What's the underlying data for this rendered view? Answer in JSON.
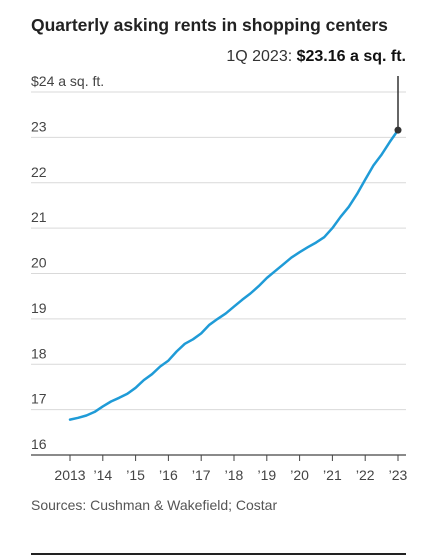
{
  "title": "Quarterly asking rents in shopping centers",
  "annotation": {
    "label": "1Q 2023:",
    "value": "$23.16 a sq. ft."
  },
  "source": "Sources: Cushman & Wakefield; Costar",
  "colors": {
    "line": "#1f9bd7",
    "grid": "#d9d9d9",
    "marker": "#333333"
  },
  "chart_data": {
    "type": "line",
    "title": "Quarterly asking rents in shopping centers",
    "xlabel": "",
    "ylabel": "",
    "ylim": [
      16,
      24
    ],
    "xlim": [
      2013.0,
      2023.0
    ],
    "grid": true,
    "y_ticks": [
      16,
      17,
      18,
      19,
      20,
      21,
      22,
      23,
      24
    ],
    "y_tick_labels": [
      "16",
      "17",
      "18",
      "19",
      "20",
      "21",
      "22",
      "23",
      "$24 a sq. ft."
    ],
    "x_ticks": [
      2013,
      2014,
      2015,
      2016,
      2017,
      2018,
      2019,
      2020,
      2021,
      2022,
      2023
    ],
    "x_tick_labels": [
      "2013",
      "’14",
      "’15",
      "’16",
      "’17",
      "’18",
      "’19",
      "’20",
      "’21",
      "’22",
      "’23"
    ],
    "x": [
      2013.0,
      2013.25,
      2013.5,
      2013.75,
      2014.0,
      2014.25,
      2014.5,
      2014.75,
      2015.0,
      2015.25,
      2015.5,
      2015.75,
      2016.0,
      2016.25,
      2016.5,
      2016.75,
      2017.0,
      2017.25,
      2017.5,
      2017.75,
      2018.0,
      2018.25,
      2018.5,
      2018.75,
      2019.0,
      2019.25,
      2019.5,
      2019.75,
      2020.0,
      2020.25,
      2020.5,
      2020.75,
      2021.0,
      2021.25,
      2021.5,
      2021.75,
      2022.0,
      2022.25,
      2022.5,
      2022.75,
      2023.0
    ],
    "values": [
      16.78,
      16.82,
      16.87,
      16.95,
      17.07,
      17.18,
      17.26,
      17.35,
      17.48,
      17.65,
      17.78,
      17.95,
      18.08,
      18.28,
      18.45,
      18.55,
      18.68,
      18.87,
      19.0,
      19.12,
      19.27,
      19.42,
      19.56,
      19.72,
      19.9,
      20.05,
      20.2,
      20.35,
      20.47,
      20.58,
      20.68,
      20.8,
      21.0,
      21.25,
      21.47,
      21.75,
      22.07,
      22.38,
      22.62,
      22.9,
      23.16
    ],
    "series_name": "",
    "highlight": {
      "x": 2023.0,
      "y": 23.16
    }
  }
}
